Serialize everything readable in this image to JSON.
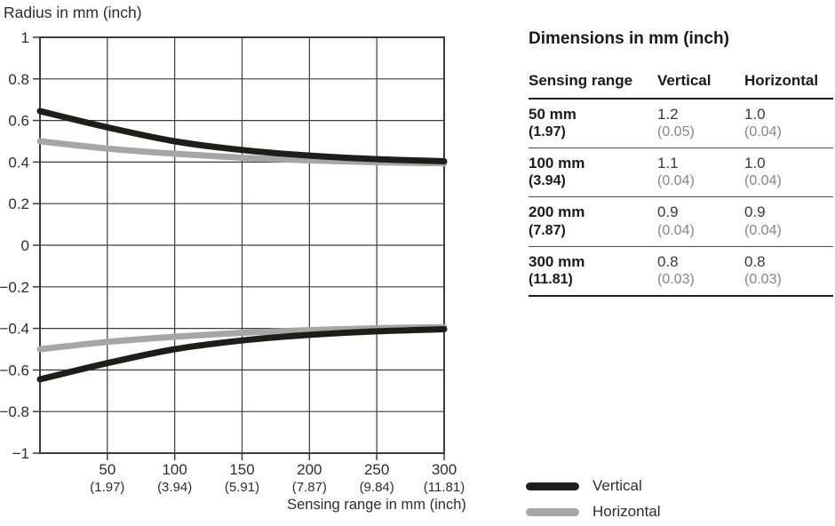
{
  "chart": {
    "title": "Radius in mm (inch)",
    "x_axis_title": "Sensing range in mm (inch)"
  },
  "chart_data": {
    "type": "line",
    "title": "Radius in mm (inch)",
    "xlabel": "Sensing range in mm (inch)",
    "ylabel": "Radius in mm (inch)",
    "xlim": [
      0,
      300
    ],
    "ylim": [
      -1,
      1
    ],
    "grid": true,
    "grid_color": "#3d3d3d",
    "x_ticks": [
      {
        "value": 50,
        "mm": "50",
        "inch": "(1.97)"
      },
      {
        "value": 100,
        "mm": "100",
        "inch": "(3.94)"
      },
      {
        "value": 150,
        "mm": "150",
        "inch": "(5.91)"
      },
      {
        "value": 200,
        "mm": "200",
        "inch": "(7.87)"
      },
      {
        "value": 250,
        "mm": "250",
        "inch": "(9.84)"
      },
      {
        "value": 300,
        "mm": "300",
        "inch": "(11.81)"
      }
    ],
    "y_ticks": [
      {
        "value": 1,
        "label": "1"
      },
      {
        "value": 0.8,
        "label": "0.8"
      },
      {
        "value": 0.6,
        "label": "0.6"
      },
      {
        "value": 0.4,
        "label": "0.4"
      },
      {
        "value": 0.2,
        "label": "0.2"
      },
      {
        "value": 0,
        "label": "0"
      },
      {
        "value": -0.2,
        "label": "−0.2"
      },
      {
        "value": -0.4,
        "label": "−0.4"
      },
      {
        "value": -0.6,
        "label": "−0.6"
      },
      {
        "value": -0.8,
        "label": "−0.8"
      },
      {
        "value": -1,
        "label": "−1"
      }
    ],
    "series": [
      {
        "name": "Vertical",
        "color": "#1d1d1b",
        "mirrored": true,
        "points": [
          [
            0,
            0.645
          ],
          [
            50,
            0.567
          ],
          [
            100,
            0.5
          ],
          [
            150,
            0.458
          ],
          [
            200,
            0.431
          ],
          [
            250,
            0.414
          ],
          [
            300,
            0.404
          ]
        ]
      },
      {
        "name": "Horizontal",
        "color": "#a6a6a6",
        "mirrored": true,
        "points": [
          [
            0,
            0.5
          ],
          [
            50,
            0.465
          ],
          [
            100,
            0.44
          ],
          [
            150,
            0.421
          ],
          [
            200,
            0.408
          ],
          [
            250,
            0.399
          ],
          [
            300,
            0.394
          ]
        ]
      }
    ],
    "legend_position": "bottom-right"
  },
  "table": {
    "title": "Dimensions in mm (inch)",
    "headers": [
      "Sensing range",
      "Vertical",
      "Horizontal"
    ],
    "rows": [
      {
        "range_mm": "50 mm",
        "range_inch": "(1.97)",
        "vertical_mm": "1.2",
        "vertical_inch": "(0.05)",
        "horizontal_mm": "1.0",
        "horizontal_inch": "(0.04)"
      },
      {
        "range_mm": "100 mm",
        "range_inch": "(3.94)",
        "vertical_mm": "1.1",
        "vertical_inch": "(0.04)",
        "horizontal_mm": "1.0",
        "horizontal_inch": "(0.04)"
      },
      {
        "range_mm": "200 mm",
        "range_inch": "(7.87)",
        "vertical_mm": "0.9",
        "vertical_inch": "(0.04)",
        "horizontal_mm": "0.9",
        "horizontal_inch": "(0.04)"
      },
      {
        "range_mm": "300 mm",
        "range_inch": "(11.81)",
        "vertical_mm": "0.8",
        "vertical_inch": "(0.03)",
        "horizontal_mm": "0.8",
        "horizontal_inch": "(0.03)"
      }
    ]
  },
  "legend": {
    "items": [
      {
        "label": "Vertical",
        "color": "#1d1d1b"
      },
      {
        "label": "Horizontal",
        "color": "#a6a6a6"
      }
    ]
  },
  "colors": {
    "curve_vertical": "#1d1d1b",
    "curve_horizontal": "#a6a6a6",
    "grid": "#3d3d3d",
    "text": "#2d2d2d",
    "secondary_text": "#868686"
  }
}
